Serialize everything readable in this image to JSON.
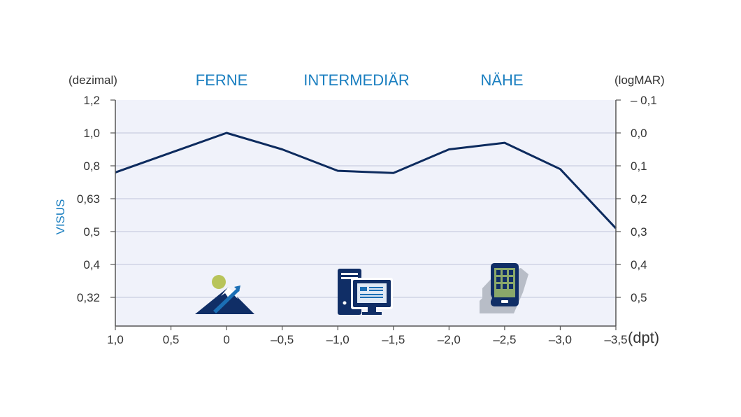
{
  "chart_data": {
    "type": "line",
    "title": "",
    "xlabel": "(dpt)",
    "ylabel": "VISUS",
    "left_axis_unit": "(dezimal)",
    "right_axis_unit": "(logMAR)",
    "zones": [
      "FERNE",
      "INTERMEDIÄR",
      "NÄHE"
    ],
    "zone_icons": [
      "mountain-icon",
      "desktop-computer-icon",
      "smartphone-in-hand-icon"
    ],
    "x_ticks": [
      "1,0",
      "0,5",
      "0",
      "–0,5",
      "–1,0",
      "–1,5",
      "–2,0",
      "–2,5",
      "–3,0",
      "–3,5"
    ],
    "x_tick_values": [
      1.0,
      0.5,
      0,
      -0.5,
      -1.0,
      -1.5,
      -2.0,
      -2.5,
      -3.0,
      -3.5
    ],
    "y_ticks_left": [
      "1,2",
      "1,0",
      "0,8",
      "0,63",
      "0,5",
      "0,4",
      "0,32"
    ],
    "y_ticks_right": [
      "– 0,1",
      "0,0",
      "0,1",
      "0,2",
      "0,3",
      "0,4",
      "0,5"
    ],
    "logmar_range": [
      -0.1,
      0.6
    ],
    "series": [
      {
        "x": [
          1.0,
          0.5,
          0,
          -0.5,
          -1.0,
          -1.5,
          -2.0,
          -2.5,
          -3.0,
          -3.5
        ],
        "logmar": [
          0.12,
          0.06,
          0.0,
          0.05,
          0.115,
          0.122,
          0.05,
          0.03,
          0.11,
          0.29
        ]
      }
    ],
    "grid": true,
    "legend": "none",
    "colors": {
      "line": "#0d2b5e",
      "plot_bg": "#f0f2fa",
      "grid": "#c9cde0",
      "zone_text": "#1b7fc0",
      "icon_dark": "#102e66",
      "icon_blue": "#1b6fb5",
      "sun": "#b8c45a",
      "hand": "#b8bdc7",
      "screen": "#8aa86a"
    }
  }
}
